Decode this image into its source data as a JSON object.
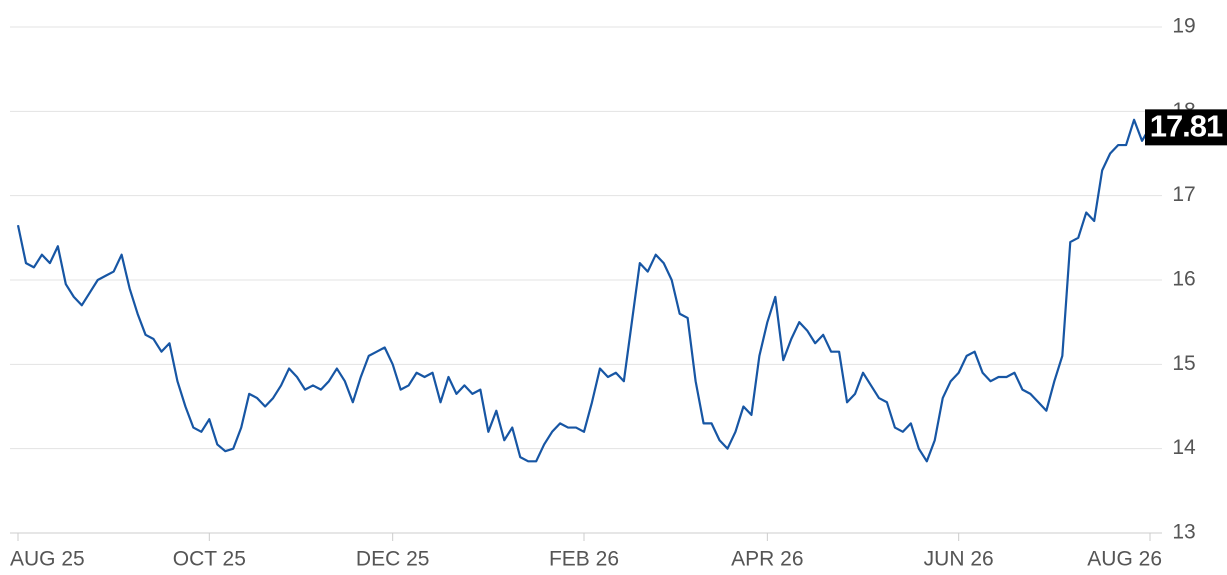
{
  "chart_data": {
    "type": "line",
    "color": "#1756a4",
    "grid": true,
    "ylim": [
      13,
      19
    ],
    "yticks": [
      13,
      14,
      15,
      16,
      17,
      18,
      19
    ],
    "categories": [
      "AUG 25",
      null,
      null,
      null,
      null,
      null,
      null,
      null,
      null,
      null,
      null,
      null,
      null,
      null,
      null,
      null,
      null,
      null,
      null,
      null,
      null,
      null,
      null,
      null,
      "OCT 25",
      null,
      null,
      null,
      null,
      null,
      null,
      null,
      null,
      null,
      null,
      null,
      null,
      null,
      null,
      null,
      null,
      null,
      null,
      null,
      null,
      null,
      null,
      "DEC 25",
      null,
      null,
      null,
      null,
      null,
      null,
      null,
      null,
      null,
      null,
      null,
      null,
      null,
      null,
      null,
      null,
      null,
      null,
      null,
      null,
      null,
      null,
      null,
      "FEB 26",
      null,
      null,
      null,
      null,
      null,
      null,
      null,
      null,
      null,
      null,
      null,
      null,
      null,
      null,
      null,
      null,
      null,
      null,
      null,
      null,
      null,
      null,
      "APR 26",
      null,
      null,
      null,
      null,
      null,
      null,
      null,
      null,
      null,
      null,
      null,
      null,
      null,
      null,
      null,
      null,
      null,
      null,
      null,
      null,
      null,
      null,
      null,
      "JUN 26",
      null,
      null,
      null,
      null,
      null,
      null,
      null,
      null,
      null,
      null,
      null,
      null,
      null,
      null,
      null,
      null,
      null,
      null,
      null,
      null,
      null,
      null,
      null,
      "AUG 26"
    ],
    "values": [
      16.65,
      16.2,
      16.15,
      16.3,
      16.2,
      16.4,
      15.95,
      15.8,
      15.7,
      15.85,
      16.0,
      16.05,
      16.1,
      16.3,
      15.9,
      15.6,
      15.35,
      15.3,
      15.15,
      15.25,
      14.8,
      14.5,
      14.25,
      14.2,
      14.35,
      14.05,
      13.97,
      14.0,
      14.25,
      14.65,
      14.6,
      14.5,
      14.6,
      14.75,
      14.95,
      14.85,
      14.7,
      14.75,
      14.7,
      14.8,
      14.95,
      14.8,
      14.55,
      14.85,
      15.1,
      15.15,
      15.2,
      15.0,
      14.7,
      14.75,
      14.9,
      14.85,
      14.9,
      14.55,
      14.85,
      14.65,
      14.75,
      14.65,
      14.7,
      14.2,
      14.45,
      14.1,
      14.25,
      13.9,
      13.85,
      13.85,
      14.05,
      14.2,
      14.3,
      14.25,
      14.25,
      14.2,
      14.55,
      14.95,
      14.85,
      14.9,
      14.8,
      15.5,
      16.2,
      16.1,
      16.3,
      16.2,
      16.0,
      15.6,
      15.55,
      14.8,
      14.3,
      14.3,
      14.1,
      14.0,
      14.2,
      14.5,
      14.4,
      15.1,
      15.5,
      15.8,
      15.05,
      15.3,
      15.5,
      15.4,
      15.25,
      15.35,
      15.15,
      15.15,
      14.55,
      14.65,
      14.9,
      14.75,
      14.6,
      14.55,
      14.25,
      14.2,
      14.3,
      14.0,
      13.85,
      14.1,
      14.6,
      14.8,
      14.9,
      15.1,
      15.15,
      14.9,
      14.8,
      14.85,
      14.85,
      14.9,
      14.7,
      14.65,
      14.55,
      14.45,
      14.8,
      15.1,
      16.45,
      16.5,
      16.8,
      16.7,
      17.3,
      17.5,
      17.6,
      17.6,
      17.9,
      17.65,
      17.81
    ]
  }
}
